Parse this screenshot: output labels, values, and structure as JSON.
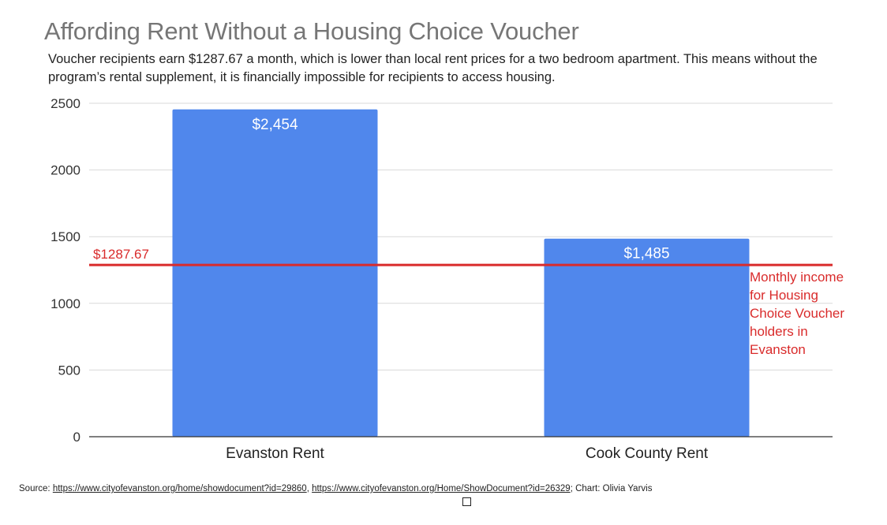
{
  "chart_data": {
    "type": "bar",
    "title": "Affording Rent Without a Housing Choice Voucher",
    "subtitle": "Voucher recipients earn $1287.67 a month, which is lower than local rent prices for a two bedroom apartment. This means without the program’s rental supplement, it is financially impossible for recipients to access housing.",
    "categories": [
      "Evanston Rent",
      "Cook County Rent"
    ],
    "values": [
      2454,
      1485
    ],
    "data_labels": [
      "$2,454",
      "$1,485"
    ],
    "xlabel": "",
    "ylabel": "",
    "ylim": [
      0,
      2500
    ],
    "yticks": [
      0,
      500,
      1000,
      1500,
      2000,
      2500
    ],
    "grid": true,
    "bar_color": "#5087EC",
    "reference_line": {
      "value": 1287.67,
      "label": "$1287.67",
      "annotation_lines": [
        "Monthly income",
        "for Housing",
        "Choice Voucher",
        "holders in",
        "Evanston"
      ],
      "color": "#D92B2B"
    }
  },
  "source": {
    "prefix": "Source: ",
    "link1": "https://www.cityofevanston.org/home/showdocument?id=29860",
    "separator": ", ",
    "link2": "https://www.cityofevanston.org/Home/ShowDocument?id=26329",
    "suffix": "; Chart: Olivia Yarvis"
  }
}
